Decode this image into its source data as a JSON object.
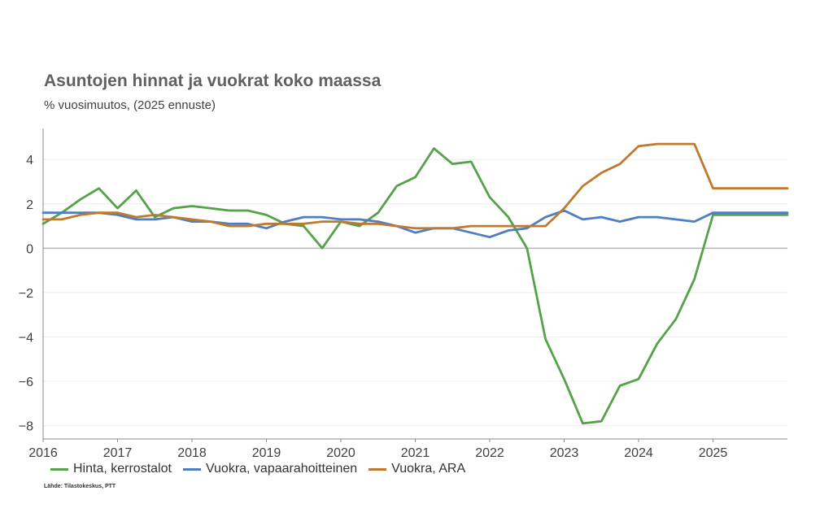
{
  "title": "Asuntojen hinnat ja vuokrat koko maassa",
  "subtitle": "% vuosimuutos, (2025 ennuste)",
  "source": "Lähde: Tilastokeskus, PTT",
  "chart_data": {
    "type": "line",
    "xlabel": "",
    "ylabel": "",
    "xlim": [
      2016,
      2026
    ],
    "ylim": [
      -8.6,
      5.4
    ],
    "yticks": [
      -8,
      -6,
      -4,
      -2,
      0,
      2,
      4
    ],
    "ytick_labels": [
      "−8",
      "−6",
      "−4",
      "−2",
      "0",
      "2",
      "4"
    ],
    "xticks": [
      2016,
      2017,
      2018,
      2019,
      2020,
      2021,
      2022,
      2023,
      2024,
      2025
    ],
    "xtick_labels": [
      "2016",
      "2017",
      "2018",
      "2019",
      "2020",
      "2021",
      "2022",
      "2023",
      "2024",
      "2025"
    ],
    "grid": "horizontal",
    "legend_position": "bottom",
    "series": [
      {
        "name": "Hinta, kerrostalot",
        "color": "#55a24a",
        "x": [
          2016.0,
          2016.25,
          2016.5,
          2016.75,
          2017.0,
          2017.25,
          2017.5,
          2017.75,
          2018.0,
          2018.25,
          2018.5,
          2018.75,
          2019.0,
          2019.25,
          2019.5,
          2019.75,
          2020.0,
          2020.25,
          2020.5,
          2020.75,
          2021.0,
          2021.25,
          2021.5,
          2021.75,
          2022.0,
          2022.25,
          2022.5,
          2022.75,
          2023.0,
          2023.25,
          2023.5,
          2023.75,
          2024.0,
          2024.25,
          2024.5,
          2024.75,
          2025.0,
          2025.25,
          2025.5,
          2025.75,
          2026.0
        ],
        "values": [
          1.1,
          1.6,
          2.2,
          2.7,
          1.8,
          2.6,
          1.4,
          1.8,
          1.9,
          1.8,
          1.7,
          1.7,
          1.5,
          1.1,
          1.0,
          0.0,
          1.2,
          1.0,
          1.6,
          2.8,
          3.2,
          4.5,
          3.8,
          3.9,
          2.3,
          1.4,
          0.0,
          -4.1,
          -5.9,
          -7.9,
          -7.8,
          -6.2,
          -5.9,
          -4.3,
          -3.2,
          -1.4,
          1.5,
          1.5,
          1.5,
          1.5,
          1.5
        ]
      },
      {
        "name": "Vuokra, vapaarahoitteinen",
        "color": "#4f7ec1",
        "x": [
          2016.0,
          2016.25,
          2016.5,
          2016.75,
          2017.0,
          2017.25,
          2017.5,
          2017.75,
          2018.0,
          2018.25,
          2018.5,
          2018.75,
          2019.0,
          2019.25,
          2019.5,
          2019.75,
          2020.0,
          2020.25,
          2020.5,
          2020.75,
          2021.0,
          2021.25,
          2021.5,
          2021.75,
          2022.0,
          2022.25,
          2022.5,
          2022.75,
          2023.0,
          2023.25,
          2023.5,
          2023.75,
          2024.0,
          2024.25,
          2024.5,
          2024.75,
          2025.0,
          2025.25,
          2025.5,
          2025.75,
          2026.0
        ],
        "values": [
          1.6,
          1.6,
          1.6,
          1.6,
          1.5,
          1.3,
          1.3,
          1.4,
          1.2,
          1.2,
          1.1,
          1.1,
          0.9,
          1.2,
          1.4,
          1.4,
          1.3,
          1.3,
          1.2,
          1.0,
          0.7,
          0.9,
          0.9,
          0.7,
          0.5,
          0.8,
          0.9,
          1.4,
          1.7,
          1.3,
          1.4,
          1.2,
          1.4,
          1.4,
          1.3,
          1.2,
          1.6,
          1.6,
          1.6,
          1.6,
          1.6
        ]
      },
      {
        "name": "Vuokra, ARA",
        "color": "#c07a2e",
        "x": [
          2016.0,
          2016.25,
          2016.5,
          2016.75,
          2017.0,
          2017.25,
          2017.5,
          2017.75,
          2018.0,
          2018.25,
          2018.5,
          2018.75,
          2019.0,
          2019.25,
          2019.5,
          2019.75,
          2020.0,
          2020.25,
          2020.5,
          2020.75,
          2021.0,
          2021.25,
          2021.5,
          2021.75,
          2022.0,
          2022.25,
          2022.5,
          2022.75,
          2023.0,
          2023.25,
          2023.5,
          2023.75,
          2024.0,
          2024.25,
          2024.5,
          2024.75,
          2025.0,
          2025.25,
          2025.5,
          2025.75,
          2026.0
        ],
        "values": [
          1.3,
          1.3,
          1.5,
          1.6,
          1.6,
          1.4,
          1.5,
          1.4,
          1.3,
          1.2,
          1.0,
          1.0,
          1.1,
          1.1,
          1.1,
          1.2,
          1.2,
          1.1,
          1.1,
          1.0,
          0.9,
          0.9,
          0.9,
          1.0,
          1.0,
          1.0,
          1.0,
          1.0,
          1.8,
          2.8,
          3.4,
          3.8,
          4.6,
          4.7,
          4.7,
          4.7,
          2.7,
          2.7,
          2.7,
          2.7,
          2.7
        ]
      }
    ]
  }
}
